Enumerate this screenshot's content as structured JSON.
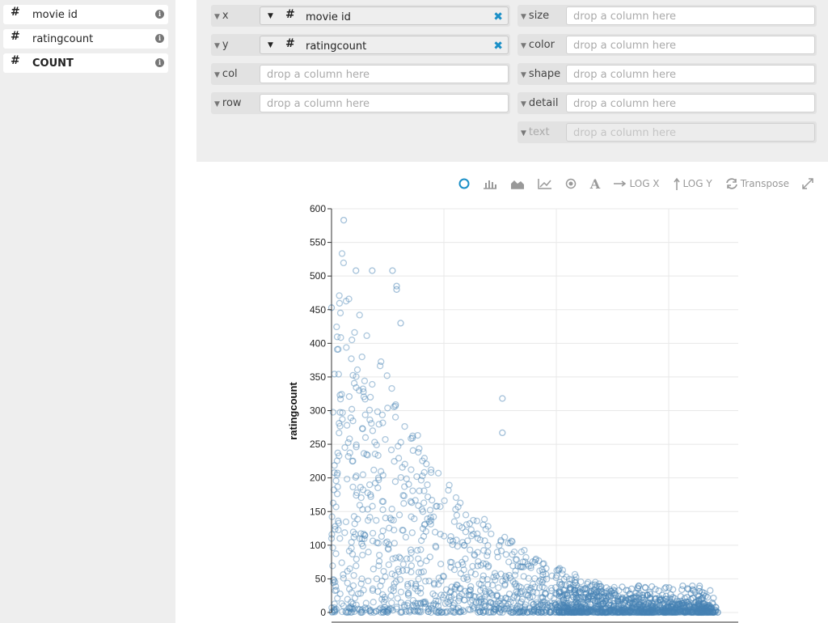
{
  "fields": [
    {
      "type_icon": "#",
      "label": "movie id",
      "bold": false
    },
    {
      "type_icon": "#",
      "label": "ratingcount",
      "bold": false
    },
    {
      "type_icon": "#",
      "label": "COUNT",
      "bold": true
    }
  ],
  "shelves": {
    "x": {
      "name": "x",
      "field": "movie id",
      "type_icon": "#"
    },
    "y": {
      "name": "y",
      "field": "ratingcount",
      "type_icon": "#"
    },
    "col": {
      "name": "col",
      "placeholder": "drop a column here"
    },
    "row": {
      "name": "row",
      "placeholder": "drop a column here"
    },
    "size": {
      "name": "size",
      "placeholder": "drop a column here"
    },
    "color": {
      "name": "color",
      "placeholder": "drop a column here"
    },
    "shape": {
      "name": "shape",
      "placeholder": "drop a column here"
    },
    "detail": {
      "name": "detail",
      "placeholder": "drop a column here"
    },
    "text": {
      "name": "text",
      "placeholder": "drop a column here"
    }
  },
  "toolbar": {
    "log_x": "LOG X",
    "log_y": "LOG Y",
    "transpose": "Transpose",
    "active_color": "#1a8fc7"
  },
  "chart_data": {
    "type": "scatter",
    "ylabel": "ratingcount",
    "xlabel": "",
    "ylim": [
      0,
      600
    ],
    "yticks": [
      0,
      50,
      100,
      150,
      200,
      250,
      300,
      350,
      400,
      450,
      500,
      550,
      600
    ],
    "x_gridlines": 4,
    "grid": true,
    "point_color": "#4682b4",
    "series": [
      {
        "x_fraction": [
          0.03,
          0.06,
          0.12,
          0.19,
          0.16,
          0.17,
          0.01,
          0.01,
          0.04,
          0.07,
          0.14,
          0.19,
          0.0,
          0.02,
          0.05,
          0.09,
          0.17,
          0.24,
          0.42,
          0.42,
          0.03,
          0.07,
          0.1,
          0.15,
          0.22,
          0.27,
          0.29,
          0.31,
          0.02,
          0.04,
          0.06,
          0.1,
          0.13,
          0.17,
          0.21,
          0.29,
          0.35,
          0.39,
          0.0,
          0.01,
          0.03,
          0.05,
          0.08,
          0.12,
          0.16,
          0.2,
          0.25,
          0.3,
          0.38,
          0.45,
          0.55,
          0.01,
          0.02,
          0.04,
          0.06,
          0.09,
          0.12,
          0.15,
          0.19,
          0.24,
          0.29,
          0.34,
          0.41,
          0.47,
          0.52,
          0.58,
          0.0,
          0.02,
          0.05,
          0.08,
          0.11,
          0.14,
          0.18,
          0.22,
          0.27,
          0.33,
          0.39,
          0.44,
          0.5,
          0.56,
          0.62,
          0.68,
          0.74,
          0.8,
          0.86,
          0.9,
          0.0,
          0.03,
          0.06,
          0.1,
          0.14,
          0.19,
          0.24,
          0.3,
          0.36,
          0.43,
          0.5,
          0.57,
          0.64,
          0.71,
          0.77,
          0.83,
          0.88,
          0.93
        ]
      }
    ]
  }
}
